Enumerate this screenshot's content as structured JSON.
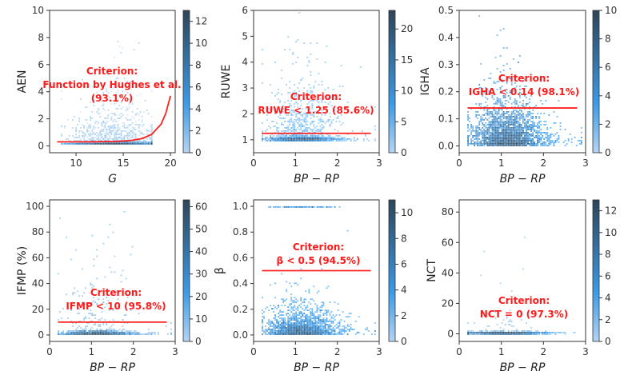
{
  "colors": {
    "criterion": "#ff2020",
    "cmap_low": "#b4d4f4",
    "cmap_mid": "#3a9ae8",
    "cmap_high": "#2d4559"
  },
  "chart_data": [
    {
      "type": "heatmap",
      "xlabel": "G",
      "ylabel": "AEN",
      "xlim": [
        7.2,
        20.5
      ],
      "ylim": [
        -0.5,
        10
      ],
      "xticks": [
        "10",
        "15",
        "20"
      ],
      "yticks": [
        "0",
        "2",
        "4",
        "6",
        "8",
        "10"
      ],
      "colorbar": {
        "range": [
          0,
          13
        ],
        "ticks": [
          "0",
          "2",
          "4",
          "6",
          "8",
          "10",
          "12"
        ]
      },
      "criterion": {
        "kind": "curve",
        "x": [
          8,
          10,
          12,
          14,
          15,
          16,
          17,
          18,
          19,
          19.5,
          20
        ],
        "y": [
          0.3,
          0.3,
          0.31,
          0.33,
          0.36,
          0.42,
          0.55,
          0.85,
          1.6,
          2.4,
          3.7
        ]
      },
      "annotation": [
        "Criterion:",
        "Function by Hughes et al.",
        "(93.1%)"
      ]
    },
    {
      "type": "heatmap",
      "xlabel": "BP − RP",
      "ylabel": "RUWE",
      "xlim": [
        0,
        3
      ],
      "ylim": [
        0.5,
        6
      ],
      "xticks": [
        "0",
        "1",
        "2",
        "3"
      ],
      "yticks": [
        "1",
        "2",
        "3",
        "4",
        "5",
        "6"
      ],
      "colorbar": {
        "range": [
          0,
          23
        ],
        "ticks": [
          "0",
          "5",
          "10",
          "15",
          "20"
        ]
      },
      "criterion": {
        "kind": "hline",
        "y": 1.25,
        "x": [
          0.2,
          2.8
        ]
      },
      "annotation": [
        "Criterion:",
        "RUWE < 1.25 (85.6%)"
      ]
    },
    {
      "type": "heatmap",
      "xlabel": "BP − RP",
      "ylabel": "IGHA",
      "xlim": [
        0,
        3
      ],
      "ylim": [
        -0.025,
        0.5
      ],
      "xticks": [
        "0",
        "1",
        "2",
        "3"
      ],
      "yticks": [
        "0.0",
        "0.1",
        "0.2",
        "0.3",
        "0.4",
        "0.5"
      ],
      "colorbar": {
        "range": [
          0,
          10
        ],
        "ticks": [
          "0",
          "2",
          "4",
          "6",
          "8",
          "10"
        ]
      },
      "criterion": {
        "kind": "hline",
        "y": 0.14,
        "x": [
          0.2,
          2.8
        ]
      },
      "annotation": [
        "Criterion:",
        "IGHA < 0.14 (98.1%)"
      ]
    },
    {
      "type": "heatmap",
      "xlabel": "BP − RP",
      "ylabel": "IFMP (%)",
      "xlim": [
        0,
        3
      ],
      "ylim": [
        -5,
        105
      ],
      "xticks": [
        "0",
        "1",
        "2",
        "3"
      ],
      "yticks": [
        "0",
        "20",
        "40",
        "60",
        "80",
        "100"
      ],
      "colorbar": {
        "range": [
          0,
          63
        ],
        "ticks": [
          "0",
          "10",
          "20",
          "30",
          "40",
          "50",
          "60"
        ]
      },
      "criterion": {
        "kind": "hline",
        "y": 10,
        "x": [
          0.2,
          2.8
        ]
      },
      "annotation": [
        "Criterion:",
        "IFMP < 10 (95.8%)"
      ]
    },
    {
      "type": "heatmap",
      "xlabel": "BP − RP",
      "ylabel": "β",
      "xlim": [
        0,
        3
      ],
      "ylim": [
        -0.05,
        1.05
      ],
      "xticks": [
        "0",
        "1",
        "2",
        "3"
      ],
      "yticks": [
        "0.0",
        "0.2",
        "0.4",
        "0.6",
        "0.8",
        "1.0"
      ],
      "colorbar": {
        "range": [
          0,
          11
        ],
        "ticks": [
          "0",
          "2",
          "4",
          "6",
          "8",
          "10"
        ]
      },
      "criterion": {
        "kind": "hline",
        "y": 0.5,
        "x": [
          0.2,
          2.8
        ]
      },
      "annotation": [
        "Criterion:",
        "β < 0.5 (94.5%)"
      ]
    },
    {
      "type": "heatmap",
      "xlabel": "BP − RP",
      "ylabel": "NCT",
      "xlim": [
        0,
        3
      ],
      "ylim": [
        -5,
        88
      ],
      "xticks": [
        "0",
        "1",
        "2",
        "3"
      ],
      "yticks": [
        "0",
        "20",
        "40",
        "60",
        "80"
      ],
      "colorbar": {
        "range": [
          0,
          13
        ],
        "ticks": [
          "0",
          "2",
          "4",
          "6",
          "8",
          "10",
          "12"
        ]
      },
      "criterion": {
        "kind": "none"
      },
      "annotation": [
        "Criterion:",
        "NCT = 0 (97.3%)"
      ]
    }
  ]
}
